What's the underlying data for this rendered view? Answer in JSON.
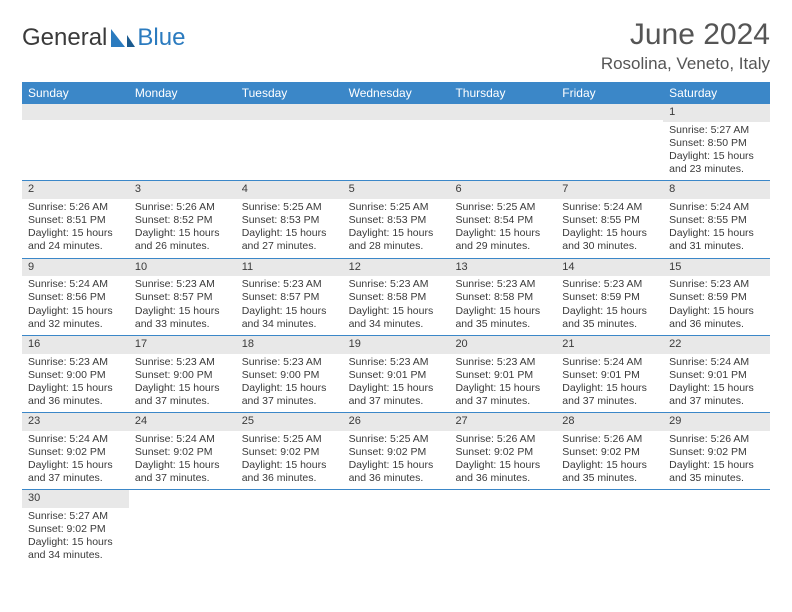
{
  "logo": {
    "text1": "General",
    "text2": "Blue"
  },
  "title": "June 2024",
  "location": "Rosolina, Veneto, Italy",
  "header_bg": "#3b87c8",
  "daynum_bg": "#e8e8e8",
  "days_of_week": [
    "Sunday",
    "Monday",
    "Tuesday",
    "Wednesday",
    "Thursday",
    "Friday",
    "Saturday"
  ],
  "weeks": [
    [
      null,
      null,
      null,
      null,
      null,
      null,
      {
        "n": "1",
        "sr": "5:27 AM",
        "ss": "8:50 PM",
        "dl": "15 hours and 23 minutes."
      }
    ],
    [
      {
        "n": "2",
        "sr": "5:26 AM",
        "ss": "8:51 PM",
        "dl": "15 hours and 24 minutes."
      },
      {
        "n": "3",
        "sr": "5:26 AM",
        "ss": "8:52 PM",
        "dl": "15 hours and 26 minutes."
      },
      {
        "n": "4",
        "sr": "5:25 AM",
        "ss": "8:53 PM",
        "dl": "15 hours and 27 minutes."
      },
      {
        "n": "5",
        "sr": "5:25 AM",
        "ss": "8:53 PM",
        "dl": "15 hours and 28 minutes."
      },
      {
        "n": "6",
        "sr": "5:25 AM",
        "ss": "8:54 PM",
        "dl": "15 hours and 29 minutes."
      },
      {
        "n": "7",
        "sr": "5:24 AM",
        "ss": "8:55 PM",
        "dl": "15 hours and 30 minutes."
      },
      {
        "n": "8",
        "sr": "5:24 AM",
        "ss": "8:55 PM",
        "dl": "15 hours and 31 minutes."
      }
    ],
    [
      {
        "n": "9",
        "sr": "5:24 AM",
        "ss": "8:56 PM",
        "dl": "15 hours and 32 minutes."
      },
      {
        "n": "10",
        "sr": "5:23 AM",
        "ss": "8:57 PM",
        "dl": "15 hours and 33 minutes."
      },
      {
        "n": "11",
        "sr": "5:23 AM",
        "ss": "8:57 PM",
        "dl": "15 hours and 34 minutes."
      },
      {
        "n": "12",
        "sr": "5:23 AM",
        "ss": "8:58 PM",
        "dl": "15 hours and 34 minutes."
      },
      {
        "n": "13",
        "sr": "5:23 AM",
        "ss": "8:58 PM",
        "dl": "15 hours and 35 minutes."
      },
      {
        "n": "14",
        "sr": "5:23 AM",
        "ss": "8:59 PM",
        "dl": "15 hours and 35 minutes."
      },
      {
        "n": "15",
        "sr": "5:23 AM",
        "ss": "8:59 PM",
        "dl": "15 hours and 36 minutes."
      }
    ],
    [
      {
        "n": "16",
        "sr": "5:23 AM",
        "ss": "9:00 PM",
        "dl": "15 hours and 36 minutes."
      },
      {
        "n": "17",
        "sr": "5:23 AM",
        "ss": "9:00 PM",
        "dl": "15 hours and 37 minutes."
      },
      {
        "n": "18",
        "sr": "5:23 AM",
        "ss": "9:00 PM",
        "dl": "15 hours and 37 minutes."
      },
      {
        "n": "19",
        "sr": "5:23 AM",
        "ss": "9:01 PM",
        "dl": "15 hours and 37 minutes."
      },
      {
        "n": "20",
        "sr": "5:23 AM",
        "ss": "9:01 PM",
        "dl": "15 hours and 37 minutes."
      },
      {
        "n": "21",
        "sr": "5:24 AM",
        "ss": "9:01 PM",
        "dl": "15 hours and 37 minutes."
      },
      {
        "n": "22",
        "sr": "5:24 AM",
        "ss": "9:01 PM",
        "dl": "15 hours and 37 minutes."
      }
    ],
    [
      {
        "n": "23",
        "sr": "5:24 AM",
        "ss": "9:02 PM",
        "dl": "15 hours and 37 minutes."
      },
      {
        "n": "24",
        "sr": "5:24 AM",
        "ss": "9:02 PM",
        "dl": "15 hours and 37 minutes."
      },
      {
        "n": "25",
        "sr": "5:25 AM",
        "ss": "9:02 PM",
        "dl": "15 hours and 36 minutes."
      },
      {
        "n": "26",
        "sr": "5:25 AM",
        "ss": "9:02 PM",
        "dl": "15 hours and 36 minutes."
      },
      {
        "n": "27",
        "sr": "5:26 AM",
        "ss": "9:02 PM",
        "dl": "15 hours and 36 minutes."
      },
      {
        "n": "28",
        "sr": "5:26 AM",
        "ss": "9:02 PM",
        "dl": "15 hours and 35 minutes."
      },
      {
        "n": "29",
        "sr": "5:26 AM",
        "ss": "9:02 PM",
        "dl": "15 hours and 35 minutes."
      }
    ],
    [
      {
        "n": "30",
        "sr": "5:27 AM",
        "ss": "9:02 PM",
        "dl": "15 hours and 34 minutes."
      },
      null,
      null,
      null,
      null,
      null,
      null
    ]
  ],
  "labels": {
    "sunrise": "Sunrise:",
    "sunset": "Sunset:",
    "daylight": "Daylight:"
  }
}
